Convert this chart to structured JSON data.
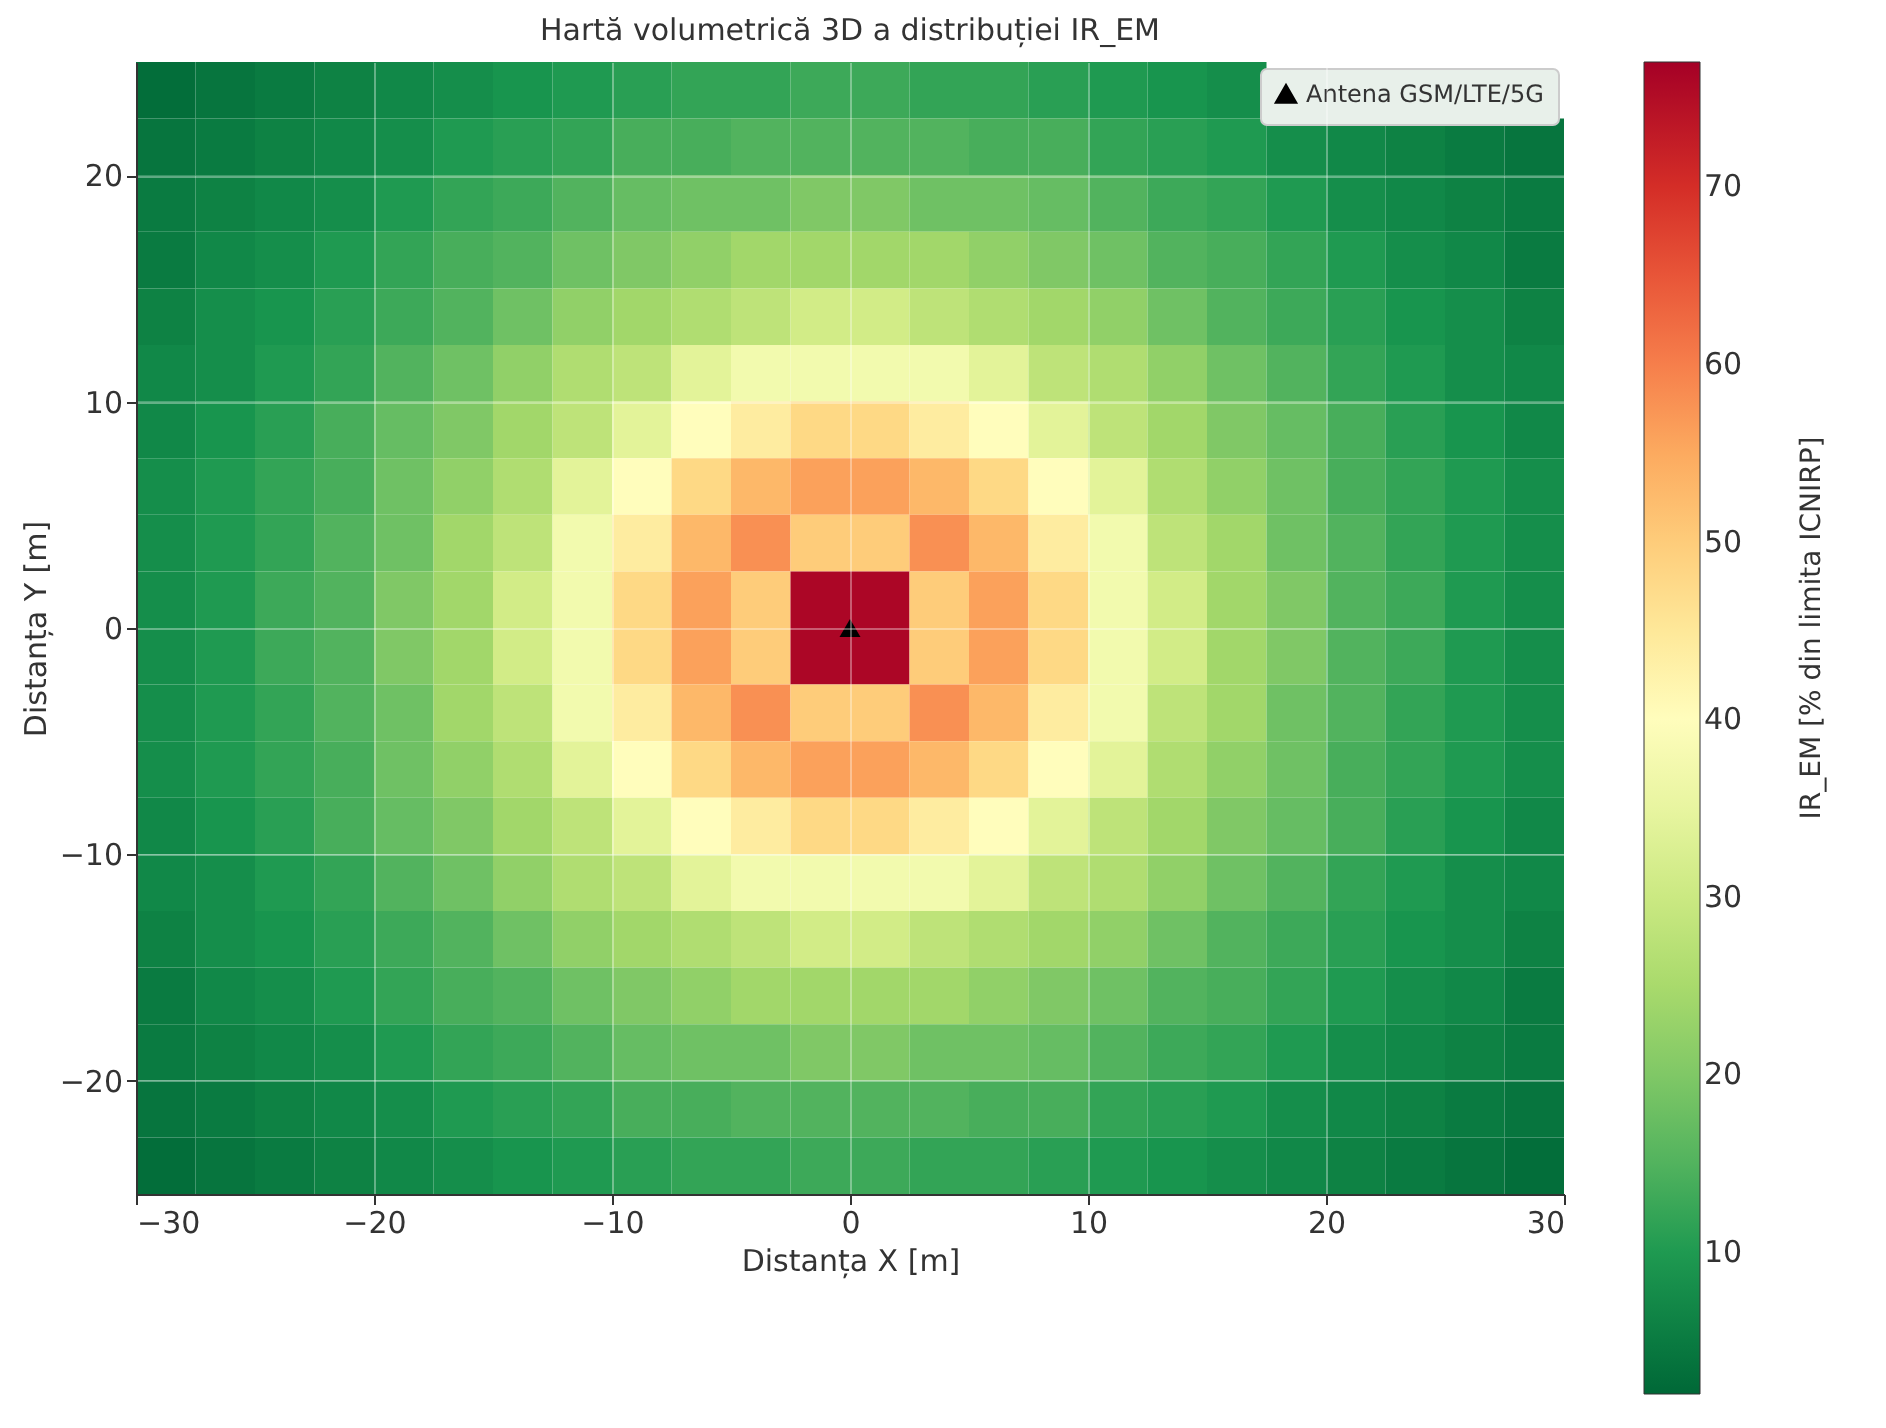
{
  "chart_data": {
    "type": "heatmap",
    "title": "Hartă volumetrică 3D a distribuției IR_EM",
    "xlabel": "Distanța X [m]",
    "ylabel": "Distanța Y [m]",
    "clabel": "IR_EM [% din limita ICNIRP]",
    "xlim": [
      -30,
      30
    ],
    "xticks": [
      -30,
      -20,
      -10,
      0,
      10,
      20,
      30
    ],
    "ylim": [
      -25,
      25
    ],
    "yticks": [
      -20,
      -10,
      0,
      10,
      20
    ],
    "clim": [
      2,
      77
    ],
    "cticks": [
      10,
      20,
      30,
      40,
      50,
      60,
      70
    ],
    "grid": true,
    "legend": "top right",
    "marker": "triangle",
    "cells": [
      [
        3,
        4,
        5,
        6,
        7,
        8,
        9,
        10,
        11,
        12,
        12,
        13,
        13,
        12,
        12,
        11,
        10,
        9,
        8,
        null,
        null,
        null,
        null,
        null
      ],
      [
        4,
        5,
        6,
        7,
        8,
        10,
        11,
        12,
        14,
        14,
        15,
        15,
        15,
        15,
        14,
        14,
        12,
        11,
        10,
        8,
        7,
        6,
        5,
        4
      ],
      [
        5,
        6,
        7,
        8,
        10,
        12,
        13,
        15,
        17,
        18,
        18,
        20,
        20,
        18,
        18,
        17,
        15,
        13,
        12,
        10,
        8,
        7,
        6,
        5
      ],
      [
        5,
        7,
        8,
        10,
        12,
        14,
        15,
        18,
        20,
        22,
        24,
        24,
        24,
        24,
        22,
        20,
        18,
        15,
        14,
        12,
        10,
        8,
        7,
        5
      ],
      [
        6,
        8,
        9,
        11,
        13,
        15,
        18,
        22,
        24,
        26,
        28,
        31,
        31,
        28,
        26,
        24,
        22,
        18,
        15,
        13,
        11,
        9,
        8,
        6
      ],
      [
        7,
        8,
        10,
        12,
        15,
        18,
        22,
        26,
        28,
        34,
        37,
        37,
        37,
        37,
        34,
        28,
        26,
        22,
        18,
        15,
        12,
        10,
        8,
        7
      ],
      [
        7,
        9,
        11,
        14,
        17,
        20,
        24,
        28,
        34,
        40,
        44,
        48,
        48,
        44,
        40,
        34,
        28,
        24,
        20,
        17,
        14,
        11,
        9,
        7
      ],
      [
        8,
        10,
        12,
        14,
        18,
        22,
        26,
        34,
        40,
        48,
        53,
        56,
        56,
        53,
        48,
        40,
        34,
        26,
        22,
        18,
        14,
        12,
        10,
        8
      ],
      [
        8,
        10,
        12,
        15,
        18,
        24,
        28,
        37,
        44,
        53,
        58,
        50,
        50,
        58,
        53,
        44,
        37,
        28,
        24,
        18,
        15,
        12,
        10,
        8
      ],
      [
        8,
        10,
        13,
        15,
        20,
        24,
        31,
        37,
        48,
        56,
        50,
        76,
        76,
        50,
        56,
        48,
        37,
        31,
        24,
        20,
        15,
        13,
        10,
        8
      ],
      [
        8,
        10,
        13,
        15,
        20,
        24,
        31,
        37,
        48,
        56,
        50,
        76,
        76,
        50,
        56,
        48,
        37,
        31,
        24,
        20,
        15,
        13,
        10,
        8
      ],
      [
        8,
        10,
        12,
        15,
        18,
        24,
        28,
        37,
        44,
        53,
        58,
        50,
        50,
        58,
        53,
        44,
        37,
        28,
        24,
        18,
        15,
        12,
        10,
        8
      ],
      [
        8,
        10,
        12,
        14,
        18,
        22,
        26,
        34,
        40,
        48,
        53,
        56,
        56,
        53,
        48,
        40,
        34,
        26,
        22,
        18,
        14,
        12,
        10,
        8
      ],
      [
        7,
        9,
        11,
        14,
        17,
        20,
        24,
        28,
        34,
        40,
        44,
        48,
        48,
        44,
        40,
        34,
        28,
        24,
        20,
        17,
        14,
        11,
        9,
        7
      ],
      [
        7,
        8,
        10,
        12,
        15,
        18,
        22,
        26,
        28,
        34,
        37,
        37,
        37,
        37,
        34,
        28,
        26,
        22,
        18,
        15,
        12,
        10,
        8,
        7
      ],
      [
        6,
        8,
        9,
        11,
        13,
        15,
        18,
        22,
        24,
        26,
        28,
        31,
        31,
        28,
        26,
        24,
        22,
        18,
        15,
        13,
        11,
        9,
        8,
        6
      ],
      [
        5,
        7,
        8,
        10,
        12,
        14,
        15,
        18,
        20,
        22,
        24,
        24,
        24,
        24,
        22,
        20,
        18,
        15,
        14,
        12,
        10,
        8,
        7,
        5
      ],
      [
        5,
        6,
        7,
        8,
        10,
        12,
        13,
        15,
        17,
        18,
        18,
        20,
        20,
        18,
        18,
        17,
        15,
        13,
        12,
        10,
        8,
        7,
        6,
        5
      ],
      [
        4,
        5,
        6,
        7,
        8,
        10,
        11,
        12,
        14,
        14,
        15,
        15,
        15,
        15,
        14,
        14,
        12,
        11,
        10,
        8,
        7,
        6,
        5,
        4
      ],
      [
        3,
        4,
        5,
        6,
        7,
        8,
        9,
        10,
        11,
        12,
        12,
        13,
        13,
        12,
        12,
        11,
        10,
        9,
        8,
        7,
        6,
        5,
        4,
        3
      ]
    ],
    "series": [
      {
        "name": "Antena GSM/LTE/5G",
        "type": "scatter",
        "color": "#000000",
        "x": [
          0
        ],
        "values": [
          0
        ]
      }
    ]
  }
}
